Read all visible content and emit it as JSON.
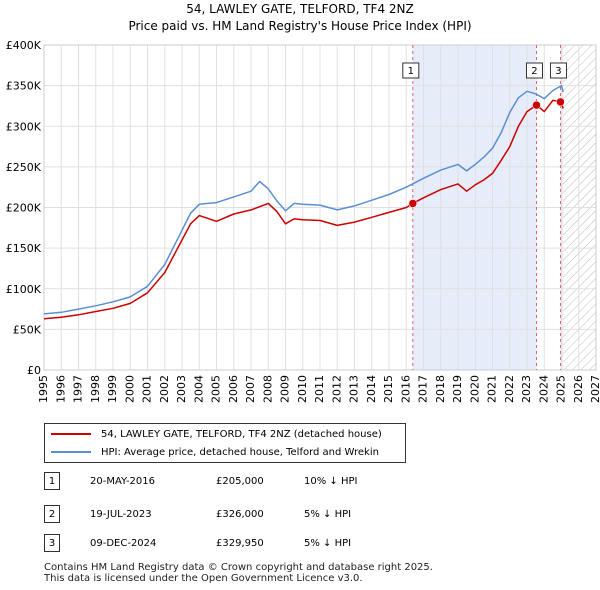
{
  "chart_data": {
    "type": "line",
    "title": "54, LAWLEY GATE, TELFORD, TF4 2NZ",
    "subtitle": "Price paid vs. HM Land Registry's House Price Index (HPI)",
    "xlim": [
      1995,
      2027
    ],
    "ylim": [
      0,
      400000
    ],
    "x_ticks": [
      1995,
      1996,
      1997,
      1998,
      1999,
      2000,
      2001,
      2002,
      2003,
      2004,
      2005,
      2006,
      2007,
      2008,
      2009,
      2010,
      2011,
      2012,
      2013,
      2014,
      2015,
      2016,
      2017,
      2018,
      2019,
      2020,
      2021,
      2022,
      2023,
      2024,
      2025,
      2026,
      2027
    ],
    "y_ticks": [
      {
        "value": 0,
        "label": "£0"
      },
      {
        "value": 50000,
        "label": "£50K"
      },
      {
        "value": 100000,
        "label": "£100K"
      },
      {
        "value": 150000,
        "label": "£150K"
      },
      {
        "value": 200000,
        "label": "£200K"
      },
      {
        "value": 250000,
        "label": "£250K"
      },
      {
        "value": 300000,
        "label": "£300K"
      },
      {
        "value": 350000,
        "label": "£350K"
      },
      {
        "value": 400000,
        "label": "£400K"
      }
    ],
    "grid": true,
    "forecast_start": 2025.1,
    "highlight_ranges": [
      [
        2016.38,
        2023.55
      ],
      [
        2024.94,
        2025.1
      ]
    ],
    "series": [
      {
        "name": "54, LAWLEY GATE, TELFORD, TF4 2NZ (detached house)",
        "color": "#cc0000",
        "x": [
          1995,
          1996,
          1997,
          1998,
          1999,
          2000,
          2001,
          2002,
          2003,
          2003.5,
          2004,
          2005,
          2006,
          2007,
          2008,
          2008.5,
          2009,
          2009.5,
          2010,
          2011,
          2012,
          2013,
          2014,
          2015,
          2016,
          2016.38,
          2017,
          2018,
          2019,
          2019.5,
          2020,
          2020.5,
          2021,
          2021.5,
          2022,
          2022.5,
          2023,
          2023.55,
          2024,
          2024.5,
          2024.94,
          2025.1
        ],
        "y": [
          63000,
          65000,
          68000,
          72000,
          76000,
          82000,
          95000,
          120000,
          160000,
          180000,
          190000,
          183000,
          192000,
          197000,
          205000,
          195000,
          180000,
          186000,
          185000,
          184000,
          178000,
          182000,
          188000,
          194000,
          200000,
          205000,
          212000,
          222000,
          229000,
          220000,
          228000,
          234000,
          242000,
          258000,
          275000,
          300000,
          318000,
          326000,
          318000,
          332000,
          329950,
          322000
        ]
      },
      {
        "name": "HPI: Average price, detached house, Telford and Wrekin",
        "color": "#5b8fd4",
        "x": [
          1995,
          1996,
          1997,
          1998,
          1999,
          2000,
          2001,
          2002,
          2003,
          2003.5,
          2004,
          2004.5,
          2005,
          2006,
          2007,
          2007.5,
          2008,
          2008.5,
          2009,
          2009.5,
          2010,
          2011,
          2012,
          2013,
          2014,
          2015,
          2016,
          2017,
          2018,
          2019,
          2019.5,
          2020,
          2020.5,
          2021,
          2021.5,
          2022,
          2022.5,
          2023,
          2023.5,
          2024,
          2024.5,
          2025,
          2025.1
        ],
        "y": [
          69000,
          71000,
          75000,
          79000,
          84000,
          90000,
          103000,
          130000,
          172000,
          193000,
          204000,
          205000,
          206000,
          213000,
          220000,
          232000,
          223000,
          208000,
          196000,
          205000,
          204000,
          203000,
          197000,
          202000,
          209000,
          216000,
          225000,
          236000,
          246000,
          253000,
          245000,
          253000,
          262000,
          273000,
          292000,
          317000,
          335000,
          343000,
          340000,
          334000,
          344000,
          350000,
          342000
        ]
      }
    ],
    "sales": [
      {
        "label": "1",
        "x": 2016.38,
        "y": 205000
      },
      {
        "label": "2",
        "x": 2023.55,
        "y": 326000
      },
      {
        "label": "3",
        "x": 2024.94,
        "y": 329950
      }
    ]
  },
  "legend": {
    "property_label": "54, LAWLEY GATE, TELFORD, TF4 2NZ (detached house)",
    "hpi_label": "HPI: Average price, detached house, Telford and Wrekin"
  },
  "transactions": [
    {
      "num": "1",
      "date": "20-MAY-2016",
      "price": "£205,000",
      "hpi": "10% ↓ HPI"
    },
    {
      "num": "2",
      "date": "19-JUL-2023",
      "price": "£326,000",
      "hpi": "5% ↓ HPI"
    },
    {
      "num": "3",
      "date": "09-DEC-2024",
      "price": "£329,950",
      "hpi": "5% ↓ HPI"
    }
  ],
  "footer": {
    "line1": "Contains HM Land Registry data © Crown copyright and database right 2025.",
    "line2": "This data is licensed under the Open Government Licence v3.0."
  }
}
